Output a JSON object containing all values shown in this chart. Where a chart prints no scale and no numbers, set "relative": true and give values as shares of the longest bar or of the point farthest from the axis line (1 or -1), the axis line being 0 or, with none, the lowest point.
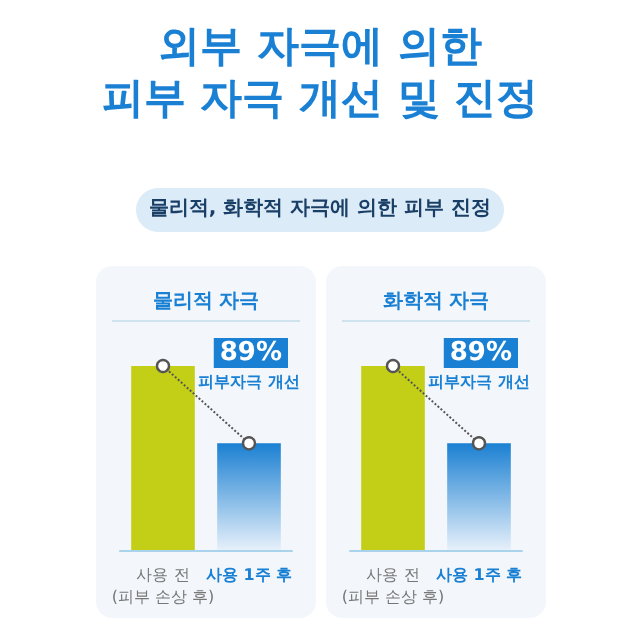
{
  "chart_data": [
    {
      "type": "other",
      "title": "외부 자극에 의한\n피부 자극 개선 및 진정",
      "subtitle": "물리적, 화학적 자극에 의한 피부 진정"
    },
    {
      "type": "bar",
      "title": "물리적 자극",
      "relative": true,
      "categories": [
        "사용 전\n(피부 손상 후)",
        "사용 1주 후"
      ],
      "annotations": [
        "89%",
        "피부자극 개선"
      ],
      "series": [
        {
          "type": "bar",
          "colors": [
            "#c3cf16",
            "#1b80d2"
          ],
          "values": [
            1,
            0.58
          ]
        },
        {
          "type": "line",
          "color": "#555555",
          "line_style": "dotted",
          "marker": "circle",
          "values": [
            1,
            0.58
          ]
        }
      ]
    },
    {
      "type": "bar",
      "title": "화학적 자극",
      "relative": true,
      "categories": [
        "사용 전\n(피부 손상 후)",
        "사용 1주 후"
      ],
      "annotations": [
        "89%",
        "피부자극 개선"
      ],
      "series": [
        {
          "type": "bar",
          "colors": [
            "#c3cf16",
            "#1b80d2"
          ],
          "values": [
            1,
            0.58
          ]
        },
        {
          "type": "line",
          "color": "#555555",
          "line_style": "dotted",
          "marker": "circle",
          "values": [
            1,
            0.58
          ]
        }
      ]
    }
  ]
}
